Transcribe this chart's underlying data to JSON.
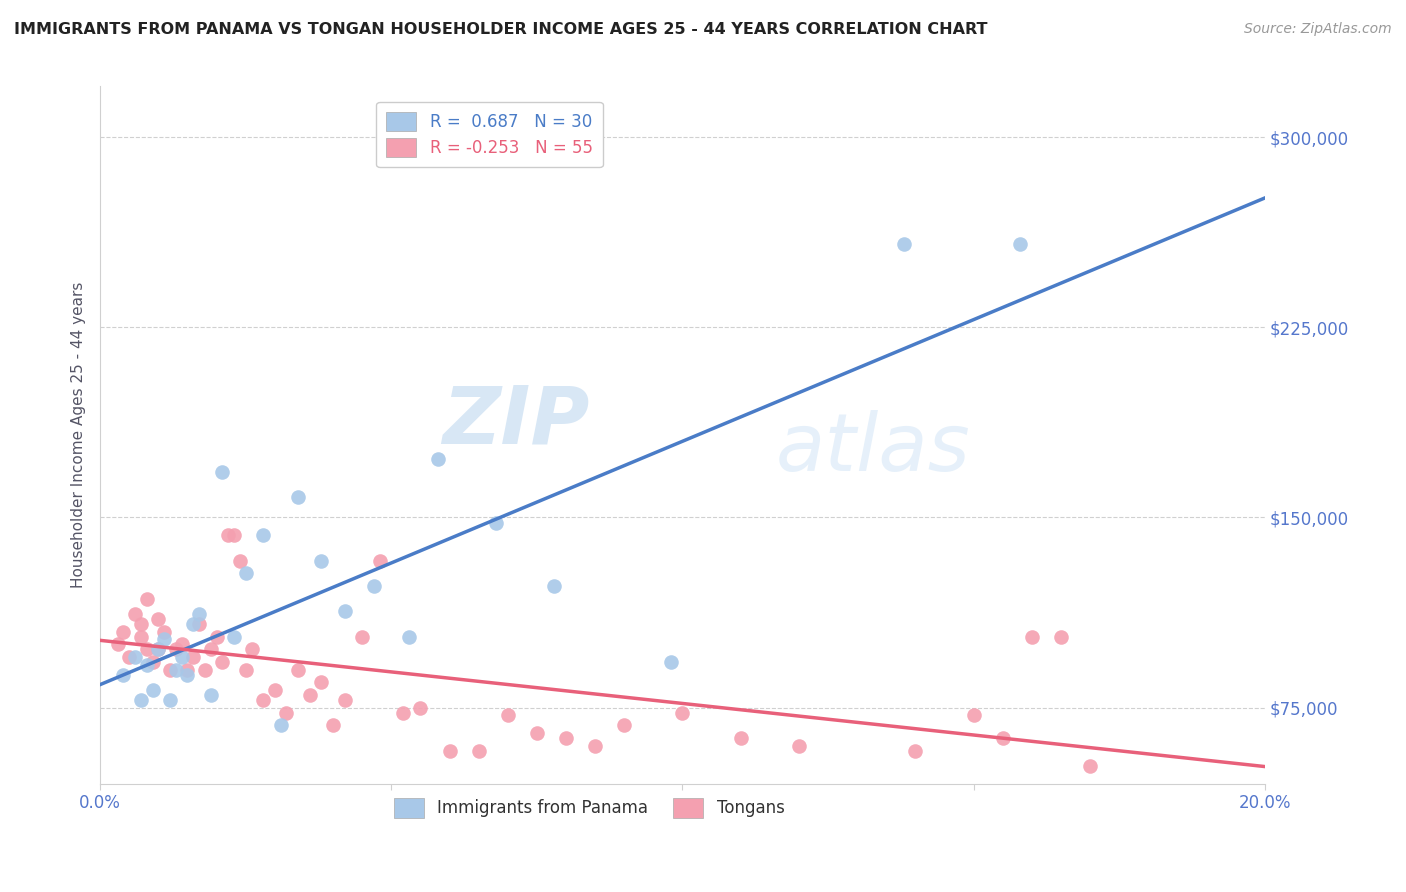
{
  "title": "IMMIGRANTS FROM PANAMA VS TONGAN HOUSEHOLDER INCOME AGES 25 - 44 YEARS CORRELATION CHART",
  "source": "Source: ZipAtlas.com",
  "ylabel": "Householder Income Ages 25 - 44 years",
  "xlim": [
    0.0,
    0.2
  ],
  "ylim": [
    45000,
    320000
  ],
  "ytick_values": [
    75000,
    150000,
    225000,
    300000
  ],
  "ytick_labels": [
    "$75,000",
    "$150,000",
    "$225,000",
    "$300,000"
  ],
  "watermark_zip": "ZIP",
  "watermark_atlas": "atlas",
  "legend1_r": " 0.687",
  "legend1_n": "30",
  "legend2_r": "-0.253",
  "legend2_n": "55",
  "blue_color": "#a8c8e8",
  "pink_color": "#f4a0b0",
  "blue_line_color": "#4a7cc7",
  "pink_line_color": "#e8607a",
  "title_color": "#222222",
  "axis_tick_color": "#5577cc",
  "grid_color": "#d0d0d0",
  "panama_points_x": [
    0.004,
    0.006,
    0.007,
    0.008,
    0.009,
    0.01,
    0.011,
    0.012,
    0.013,
    0.014,
    0.015,
    0.016,
    0.017,
    0.019,
    0.021,
    0.023,
    0.025,
    0.028,
    0.031,
    0.034,
    0.038,
    0.042,
    0.047,
    0.053,
    0.058,
    0.068,
    0.078,
    0.098,
    0.138,
    0.158
  ],
  "panama_points_y": [
    88000,
    95000,
    78000,
    92000,
    82000,
    98000,
    102000,
    78000,
    90000,
    95000,
    88000,
    108000,
    112000,
    80000,
    168000,
    103000,
    128000,
    143000,
    68000,
    158000,
    133000,
    113000,
    123000,
    103000,
    173000,
    148000,
    123000,
    93000,
    258000,
    258000
  ],
  "tongan_points_x": [
    0.003,
    0.004,
    0.005,
    0.006,
    0.007,
    0.007,
    0.008,
    0.008,
    0.009,
    0.01,
    0.01,
    0.011,
    0.012,
    0.013,
    0.014,
    0.015,
    0.016,
    0.017,
    0.018,
    0.019,
    0.02,
    0.021,
    0.022,
    0.023,
    0.024,
    0.025,
    0.026,
    0.028,
    0.03,
    0.032,
    0.034,
    0.036,
    0.038,
    0.04,
    0.042,
    0.045,
    0.048,
    0.052,
    0.055,
    0.06,
    0.065,
    0.07,
    0.075,
    0.08,
    0.085,
    0.09,
    0.1,
    0.11,
    0.12,
    0.14,
    0.15,
    0.155,
    0.16,
    0.165,
    0.17
  ],
  "tongan_points_y": [
    100000,
    105000,
    95000,
    112000,
    108000,
    103000,
    118000,
    98000,
    93000,
    110000,
    98000,
    105000,
    90000,
    98000,
    100000,
    90000,
    95000,
    108000,
    90000,
    98000,
    103000,
    93000,
    143000,
    143000,
    133000,
    90000,
    98000,
    78000,
    82000,
    73000,
    90000,
    80000,
    85000,
    68000,
    78000,
    103000,
    133000,
    73000,
    75000,
    58000,
    58000,
    72000,
    65000,
    63000,
    60000,
    68000,
    73000,
    63000,
    60000,
    58000,
    72000,
    63000,
    103000,
    103000,
    52000
  ]
}
